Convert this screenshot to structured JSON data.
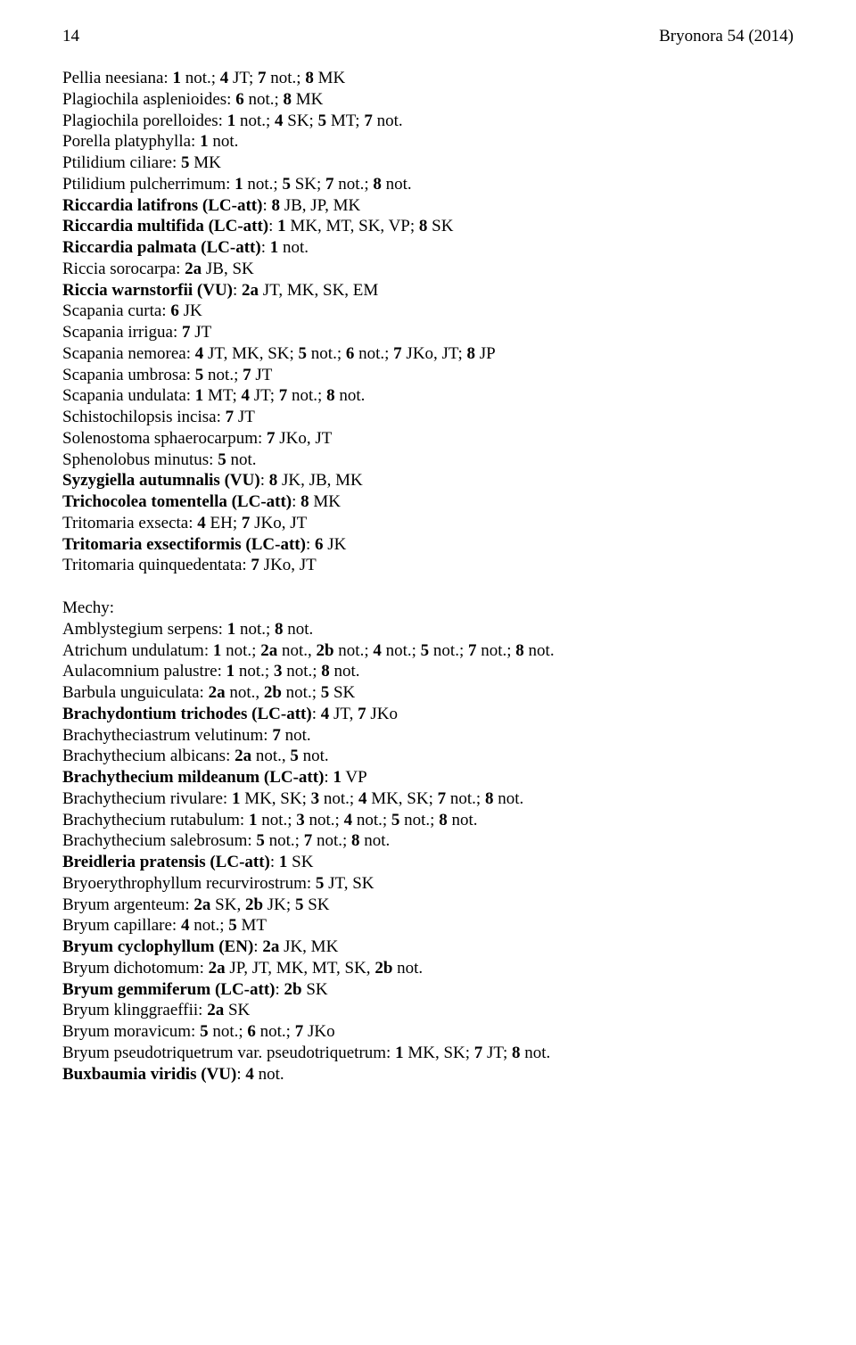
{
  "header": {
    "page_number": "14",
    "journal": "Bryonora 54 (2014)"
  },
  "block1": [
    {
      "html": "Pellia neesiana: <b>1</b> not.; <b>4</b> JT; <b>7</b> not.; <b>8</b> MK"
    },
    {
      "html": "Plagiochila asplenioides: <b>6</b> not.; <b>8</b> MK"
    },
    {
      "html": "Plagiochila porelloides: <b>1</b> not.; <b>4</b> SK; <b>5</b> MT; <b>7</b> not."
    },
    {
      "html": "Porella platyphylla: <b>1</b> not."
    },
    {
      "html": "Ptilidium ciliare: <b>5</b> MK"
    },
    {
      "html": "Ptilidium pulcherrimum: <b>1</b> not.; <b>5</b> SK; <b>7</b> not.; <b>8</b> not."
    },
    {
      "html": "<b>Riccardia latifrons (LC-att)</b>: <b>8</b> JB, JP, MK"
    },
    {
      "html": "<b>Riccardia multifida (LC-att)</b>: <b>1</b> MK, MT, SK, VP; <b>8</b> SK"
    },
    {
      "html": "<b>Riccardia palmata (LC-att)</b>: <b>1</b> not."
    },
    {
      "html": "Riccia sorocarpa: <b>2a</b> JB, SK"
    },
    {
      "html": "<b>Riccia warnstorfii (VU)</b>: <b>2a</b> JT, MK, SK, EM"
    },
    {
      "html": "Scapania curta: <b>6</b> JK"
    },
    {
      "html": "Scapania irrigua: <b>7</b> JT"
    },
    {
      "html": "Scapania nemorea: <b>4</b> JT, MK, SK; <b>5</b> not.; <b>6</b> not.; <b>7</b> JKo, JT; <b>8</b> JP"
    },
    {
      "html": "Scapania umbrosa: <b>5</b> not.; <b>7</b> JT"
    },
    {
      "html": "Scapania undulata: <b>1</b> MT; <b>4</b> JT; <b>7</b> not.; <b>8</b> not."
    },
    {
      "html": "Schistochilopsis incisa: <b>7</b> JT"
    },
    {
      "html": "Solenostoma sphaerocarpum: <b>7</b> JKo, JT"
    },
    {
      "html": "Sphenolobus minutus: <b>5</b> not."
    },
    {
      "html": "<b>Syzygiella autumnalis (VU)</b>: <b>8</b> JK, JB, MK"
    },
    {
      "html": "<b>Trichocolea tomentella (LC-att)</b>: <b>8</b> MK"
    },
    {
      "html": "Tritomaria exsecta: <b>4</b> EH; <b>7</b> JKo, JT"
    },
    {
      "html": "<b>Tritomaria exsectiformis (LC-att)</b>: <b>6</b> JK"
    },
    {
      "html": "Tritomaria quinquedentata: <b>7</b> JKo, JT"
    }
  ],
  "block2_heading": "Mechy:",
  "block2": [
    {
      "html": "Amblystegium serpens: <b>1</b> not.; <b>8</b> not."
    },
    {
      "html": "Atrichum undulatum: <b>1</b> not.; <b>2a</b> not., <b>2b</b> not.; <b>4</b> not.; <b>5</b> not.; <b>7</b> not.; <b>8</b> not."
    },
    {
      "html": "Aulacomnium palustre: <b>1</b> not.; <b>3</b> not.; <b>8</b> not."
    },
    {
      "html": "Barbula unguiculata: <b>2a</b> not., <b>2b</b> not.; <b>5</b> SK"
    },
    {
      "html": "<b>Brachydontium trichodes (LC-att)</b>: <b>4</b> JT, <b>7</b> JKo"
    },
    {
      "html": "Brachytheciastrum velutinum: <b>7</b> not."
    },
    {
      "html": "Brachythecium albicans: <b>2a</b> not., <b>5</b> not."
    },
    {
      "html": "<b>Brachythecium mildeanum (LC-att)</b>: <b>1</b> VP"
    },
    {
      "html": "Brachythecium rivulare: <b>1</b> MK, SK; <b>3</b> not.; <b>4</b> MK, SK; <b>7</b> not.; <b>8</b> not."
    },
    {
      "html": "Brachythecium rutabulum: <b>1</b> not.; <b>3</b> not.; <b>4</b> not.; <b>5</b> not.; <b>8</b> not."
    },
    {
      "html": "Brachythecium salebrosum: <b>5</b> not.; <b>7</b> not.; <b>8</b> not."
    },
    {
      "html": "<b>Breidleria pratensis (LC-att)</b>: <b>1</b> SK"
    },
    {
      "html": "Bryoerythrophyllum recurvirostrum: <b>5</b> JT, SK"
    },
    {
      "html": "Bryum argenteum: <b>2a</b> SK, <b>2b</b> JK; <b>5</b> SK"
    },
    {
      "html": "Bryum capillare: <b>4</b> not.; <b>5</b> MT"
    },
    {
      "html": "<b>Bryum cyclophyllum (EN)</b>: <b>2a</b> JK, MK"
    },
    {
      "html": "Bryum dichotomum: <b>2a</b> JP, JT, MK, MT, SK, <b>2b</b> not."
    },
    {
      "html": "<b>Bryum gemmiferum (LC-att)</b>: <b>2b</b> SK"
    },
    {
      "html": "Bryum klinggraeffii: <b>2a</b> SK"
    },
    {
      "html": "Bryum moravicum: <b>5</b> not.; <b>6</b> not.; <b>7</b> JKo"
    },
    {
      "html": "Bryum pseudotriquetrum var. pseudotriquetrum: <b>1</b> MK, SK; <b>7</b> JT; <b>8</b> not."
    },
    {
      "html": "<b>Buxbaumia viridis (VU)</b>: <b>4</b> not."
    }
  ]
}
